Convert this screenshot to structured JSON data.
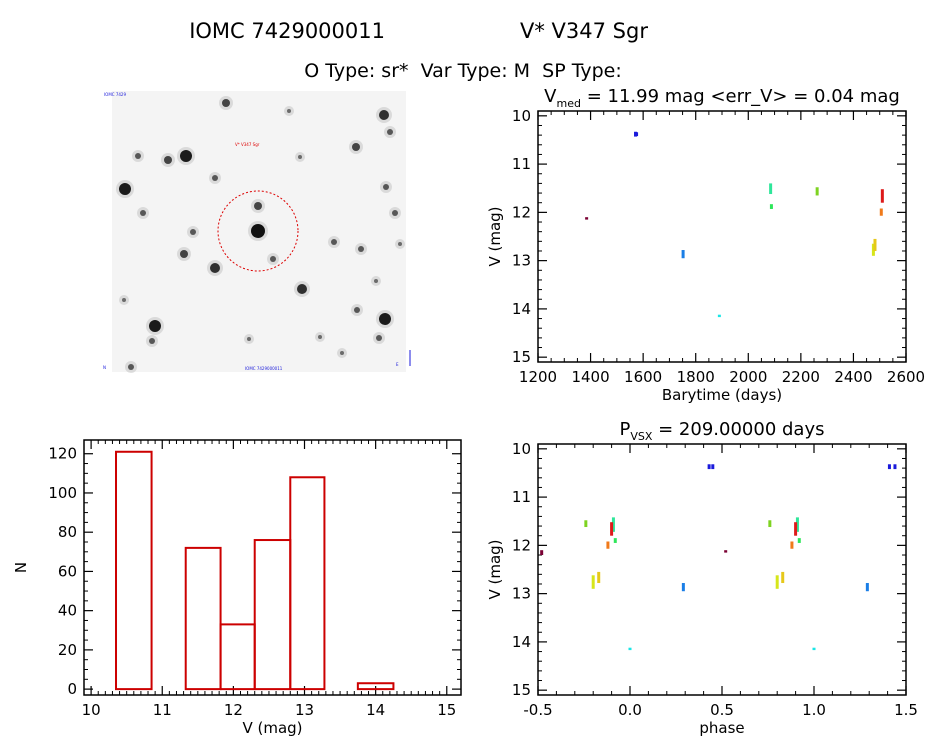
{
  "header": {
    "line1_id": "IOMC 7429000011",
    "line1_name": "V* V347 Sgr",
    "line2": "O Type: sr*  Var Type: M  SP Type:"
  },
  "image_panel": {
    "label_top_left": "IOMC 7429",
    "label_target": "V* V347 Sgr",
    "label_bottom_center": "IOMC 7429000011",
    "label_bottom_left": "N",
    "label_bottom_right": "E"
  },
  "colors": {
    "axis": "#000000",
    "histogram": "#cc0000",
    "circle": "#dd0000"
  },
  "chart_data": [
    {
      "type": "scatter",
      "id": "light_curve",
      "title_main": "V",
      "title_sub": "med",
      "title_rest": " = 11.99 mag <err_V> = 0.04 mag",
      "xlabel": "Barytime (days)",
      "ylabel": "V (mag)",
      "xlim": [
        1200,
        2600
      ],
      "ylim": [
        15.1,
        9.9
      ],
      "y_inverted": true,
      "xticks": [
        1200,
        1400,
        1600,
        1800,
        2000,
        2200,
        2400,
        2600
      ],
      "yticks": [
        10,
        11,
        12,
        13,
        14,
        15
      ],
      "points": [
        {
          "x": 1385,
          "y": 12.15,
          "y2": 12.1,
          "color": "#7a0033"
        },
        {
          "x": 1571,
          "y": 10.43,
          "y2": 10.33,
          "color": "#1a1adb"
        },
        {
          "x": 1575,
          "y": 10.42,
          "y2": 10.34,
          "color": "#1a1adb"
        },
        {
          "x": 1752,
          "y": 12.95,
          "y2": 12.78,
          "color": "#1a7ee6"
        },
        {
          "x": 1890,
          "y": 14.17,
          "y2": 14.12,
          "color": "#1ae6e6"
        },
        {
          "x": 2085,
          "y": 11.62,
          "y2": 11.4,
          "color": "#2ee69a"
        },
        {
          "x": 2088,
          "y": 11.93,
          "y2": 11.83,
          "color": "#2ee65a"
        },
        {
          "x": 2262,
          "y": 11.65,
          "y2": 11.48,
          "color": "#7ed321"
        },
        {
          "x": 2476,
          "y": 12.9,
          "y2": 12.65,
          "color": "#d6e61a"
        },
        {
          "x": 2482,
          "y": 12.8,
          "y2": 12.55,
          "color": "#e6c81a"
        },
        {
          "x": 2506,
          "y": 12.07,
          "y2": 11.92,
          "color": "#f07a1a"
        },
        {
          "x": 2510,
          "y": 11.8,
          "y2": 11.52,
          "color": "#dd1a1a"
        }
      ]
    },
    {
      "type": "bar",
      "id": "histogram",
      "xlabel": "V (mag)",
      "ylabel": "N",
      "xlim": [
        9.9,
        15.2
      ],
      "ylim": [
        -3,
        127
      ],
      "xticks": [
        10,
        11,
        12,
        13,
        14,
        15
      ],
      "yticks": [
        0,
        20,
        40,
        60,
        80,
        100,
        120
      ],
      "bins": [
        {
          "x0": 10.35,
          "x1": 10.85,
          "count": 121
        },
        {
          "x0": 11.33,
          "x1": 11.82,
          "count": 72
        },
        {
          "x0": 11.82,
          "x1": 12.3,
          "count": 33
        },
        {
          "x0": 12.3,
          "x1": 12.8,
          "count": 76
        },
        {
          "x0": 12.8,
          "x1": 13.28,
          "count": 108
        },
        {
          "x0": 13.75,
          "x1": 14.25,
          "count": 3
        }
      ]
    },
    {
      "type": "scatter",
      "id": "phase_curve",
      "title_main": "P",
      "title_sub": "VSX",
      "title_rest": " = 209.00000 days",
      "xlabel": "phase",
      "ylabel": "V (mag)",
      "xlim": [
        -0.5,
        1.5
      ],
      "ylim": [
        15.1,
        9.9
      ],
      "y_inverted": true,
      "xticks": [
        -0.5,
        0.0,
        0.5,
        1.0,
        1.5
      ],
      "yticks": [
        10,
        11,
        12,
        13,
        14,
        15
      ],
      "points": [
        {
          "x": 0.43,
          "y": 10.42,
          "y2": 10.32,
          "color": "#1a1adb"
        },
        {
          "x": 0.45,
          "y": 10.42,
          "y2": 10.32,
          "color": "#1a1adb"
        },
        {
          "x": 1.41,
          "y": 10.42,
          "y2": 10.32,
          "color": "#1a1adb"
        },
        {
          "x": 1.44,
          "y": 10.42,
          "y2": 10.32,
          "color": "#1a1adb"
        },
        {
          "x": -0.24,
          "y": 11.62,
          "y2": 11.48,
          "color": "#7ed321"
        },
        {
          "x": 0.76,
          "y": 11.62,
          "y2": 11.48,
          "color": "#7ed321"
        },
        {
          "x": -0.09,
          "y": 11.72,
          "y2": 11.42,
          "color": "#2ee69a"
        },
        {
          "x": 0.91,
          "y": 11.72,
          "y2": 11.42,
          "color": "#2ee69a"
        },
        {
          "x": -0.08,
          "y": 11.95,
          "y2": 11.85,
          "color": "#2ee65a"
        },
        {
          "x": 0.92,
          "y": 11.95,
          "y2": 11.85,
          "color": "#2ee65a"
        },
        {
          "x": -0.1,
          "y": 11.8,
          "y2": 11.52,
          "color": "#dd1a1a"
        },
        {
          "x": 0.9,
          "y": 11.8,
          "y2": 11.52,
          "color": "#dd1a1a"
        },
        {
          "x": -0.12,
          "y": 12.07,
          "y2": 11.92,
          "color": "#f07a1a"
        },
        {
          "x": 0.88,
          "y": 12.07,
          "y2": 11.92,
          "color": "#f07a1a"
        },
        {
          "x": 0.52,
          "y": 12.15,
          "y2": 12.1,
          "color": "#7a0033"
        },
        {
          "x": -0.2,
          "y": 12.9,
          "y2": 12.62,
          "color": "#d6e61a"
        },
        {
          "x": -0.17,
          "y": 12.78,
          "y2": 12.55,
          "color": "#e6c81a"
        },
        {
          "x": 0.8,
          "y": 12.9,
          "y2": 12.62,
          "color": "#d6e61a"
        },
        {
          "x": 0.83,
          "y": 12.78,
          "y2": 12.55,
          "color": "#e6c81a"
        },
        {
          "x": 0.29,
          "y": 12.95,
          "y2": 12.78,
          "color": "#1a7ee6"
        },
        {
          "x": 1.29,
          "y": 12.95,
          "y2": 12.78,
          "color": "#1a7ee6"
        },
        {
          "x": 0.0,
          "y": 14.17,
          "y2": 14.12,
          "color": "#1ae6e6"
        },
        {
          "x": 1.0,
          "y": 14.17,
          "y2": 14.12,
          "color": "#1ae6e6"
        },
        {
          "x": -0.48,
          "y": 12.2,
          "y2": 12.1,
          "color": "#7a0033"
        }
      ]
    }
  ]
}
